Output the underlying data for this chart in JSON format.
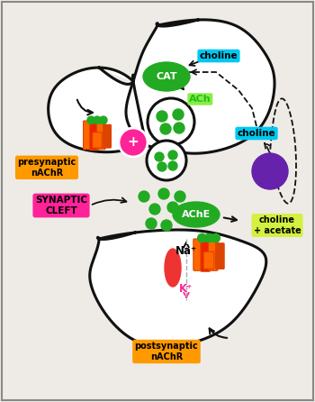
{
  "bg_color": "#eeebe6",
  "labels": {
    "choline_top": "choline",
    "choline_mid": "choline",
    "ACh": "ACh",
    "CAT": "CAT",
    "AChE": "AChE",
    "choline_acetate": "choline\n+ acetate",
    "presynaptic": "presynaptic\nnAChR",
    "synaptic_cleft": "SYNAPTIC\nCLEFT",
    "Na": "Na⁺",
    "K": "K⁺",
    "postsynaptic": "postsynaptic\nnAChR"
  },
  "label_colors": {
    "choline_bg": "#00c8f0",
    "ACh_color": "#22bb22",
    "CAT_bg": "#22aa22",
    "AChE_bg": "#22aa22",
    "choline_acetate_bg": "#d4f040",
    "presynaptic_bg": "#ff9900",
    "synaptic_cleft_bg": "#ff2299",
    "Na_color": "#111111",
    "K_color": "#ff2299",
    "postsynaptic_bg": "#ff9900"
  },
  "vesicle_color": "#22aa22",
  "purple_circle_color": "#6622aa",
  "pink_circle_color": "#ff2299",
  "receptor_orange": "#ff6600",
  "receptor_red": "#ee2200",
  "receptor_dark_orange": "#dd4400",
  "receptor_green": "#22aa22",
  "line_color": "#111111",
  "line_width": 2.2,
  "border_color": "#888888"
}
